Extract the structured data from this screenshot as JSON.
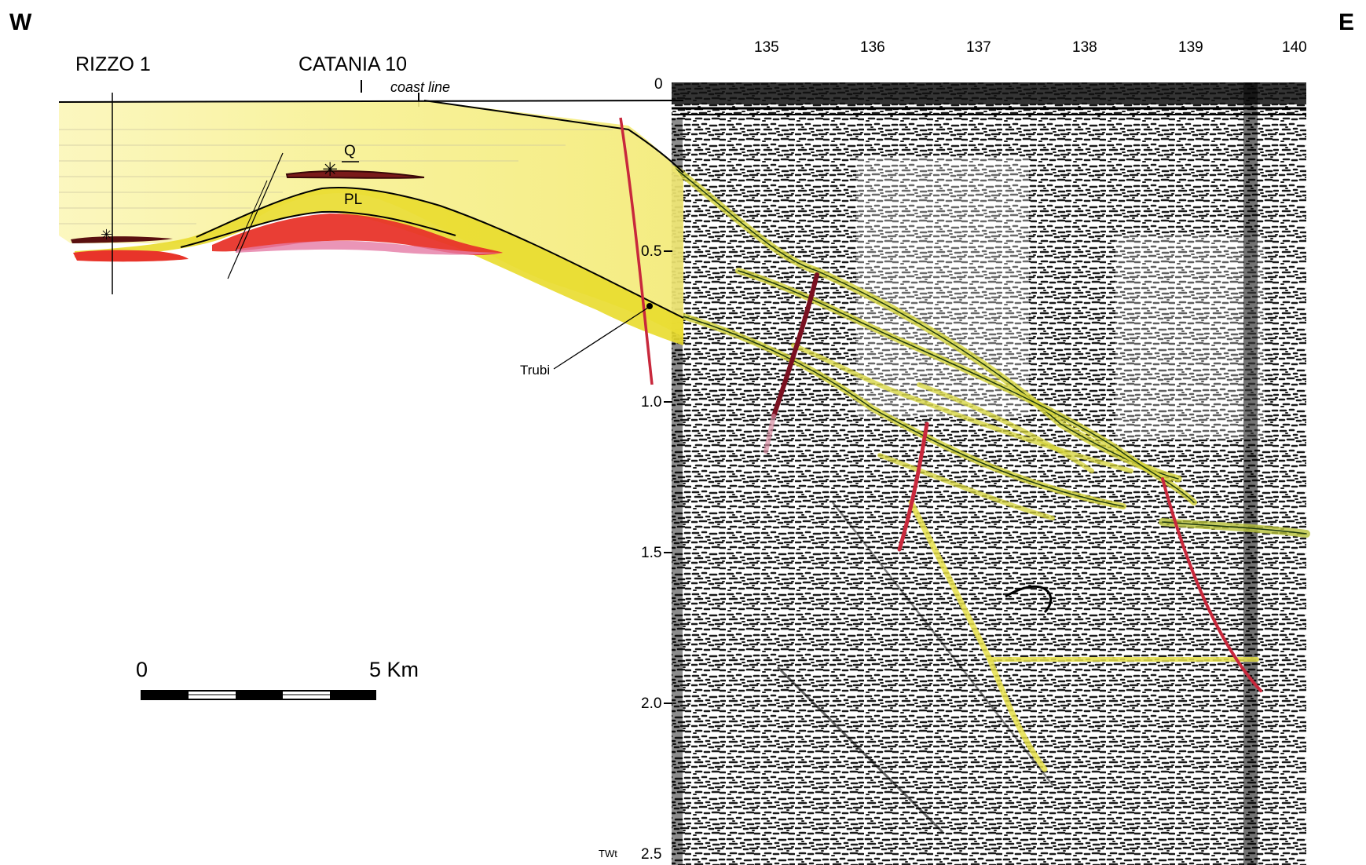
{
  "compass": {
    "west": "W",
    "east": "E"
  },
  "wells": [
    {
      "name": "RIZZO 1"
    },
    {
      "name": "CATANIA 10"
    }
  ],
  "coast_label": "coast line",
  "shotpoints": [
    "135",
    "136",
    "137",
    "138",
    "139",
    "140"
  ],
  "twt_ticks": [
    "0",
    "0.5",
    "1.0",
    "1.5",
    "2.0",
    "2.5"
  ],
  "twt_unit": "TWt",
  "unit_labels": {
    "quaternary": "Q",
    "pliocene": "PL"
  },
  "trubi_label": "Trubi",
  "scale_bar": {
    "start": "0",
    "end": "5 Km"
  },
  "colors": {
    "plio_quaternary_fill": "#f6f08a",
    "trubi_yellow": "#e9dc2c",
    "reservoir_red": "#e8342a",
    "pink_margin": "#e57aa5",
    "fault_red": "#c8283c",
    "reflector_yellow": "#d6d43a",
    "seismic_background": "#ffffff"
  }
}
